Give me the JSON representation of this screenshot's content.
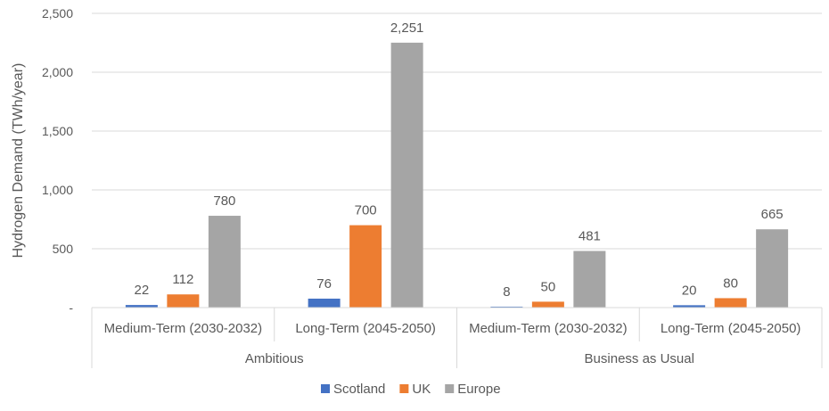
{
  "chart_data": {
    "type": "bar",
    "title": "",
    "ylabel": "Hydrogen Demand (TWh/year)",
    "xlabel": "",
    "ylim": [
      0,
      2500
    ],
    "yticks": [
      0,
      500,
      1000,
      1500,
      2000,
      2500
    ],
    "ytick_labels": [
      "-",
      "500",
      "1,000",
      "1,500",
      "2,000",
      "2,500"
    ],
    "grid": "horizontal",
    "legend_position": "bottom",
    "groups": [
      {
        "label": "Ambitious",
        "categories": [
          "Medium-Term (2030-2032)",
          "Long-Term (2045-2050)"
        ]
      },
      {
        "label": "Business as Usual",
        "categories": [
          "Medium-Term (2030-2032)",
          "Long-Term (2045-2050)"
        ]
      }
    ],
    "categories": [
      "Medium-Term (2030-2032)",
      "Long-Term (2045-2050)",
      "Medium-Term (2030-2032)",
      "Long-Term (2045-2050)"
    ],
    "series": [
      {
        "name": "Scotland",
        "color": "#4472C4",
        "values": [
          22,
          76,
          8,
          20
        ],
        "labels": [
          "22",
          "76",
          "8",
          "20"
        ]
      },
      {
        "name": "UK",
        "color": "#ED7D31",
        "values": [
          112,
          700,
          50,
          80
        ],
        "labels": [
          "112",
          "700",
          "50",
          "80"
        ]
      },
      {
        "name": "Europe",
        "color": "#A5A5A5",
        "values": [
          780,
          2251,
          481,
          665
        ],
        "labels": [
          "780",
          "2,251",
          "481",
          "665"
        ]
      }
    ]
  }
}
